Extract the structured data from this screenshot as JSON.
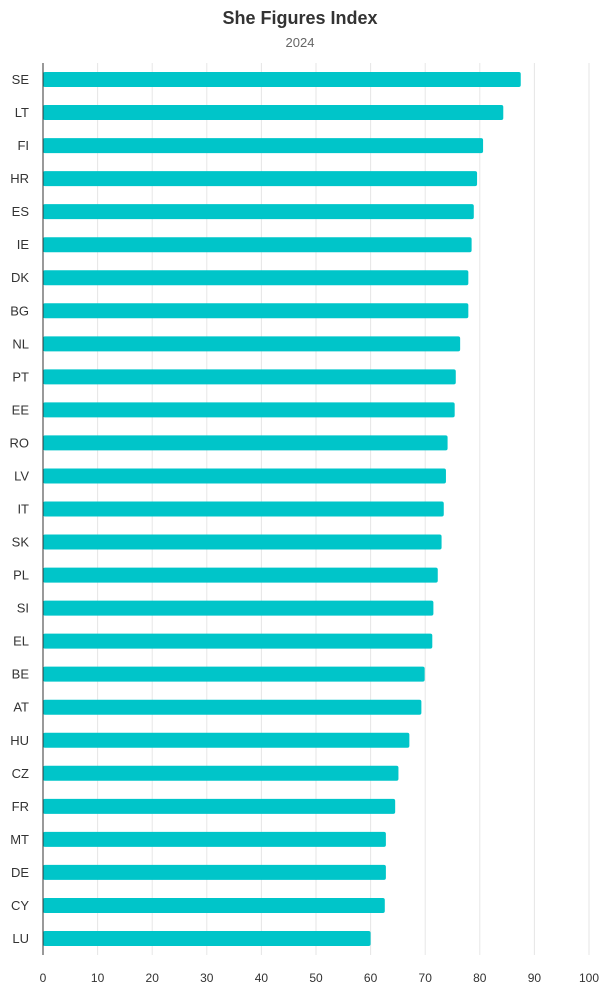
{
  "chart_data": {
    "type": "bar",
    "orientation": "horizontal",
    "title": "She Figures Index",
    "subtitle": "2024",
    "categories": [
      "SE",
      "LT",
      "FI",
      "HR",
      "ES",
      "IE",
      "DK",
      "BG",
      "NL",
      "PT",
      "EE",
      "RO",
      "LV",
      "IT",
      "SK",
      "PL",
      "SI",
      "EL",
      "BE",
      "AT",
      "HU",
      "CZ",
      "FR",
      "MT",
      "DE",
      "CY",
      "LU"
    ],
    "values": [
      87.5,
      84.3,
      80.6,
      79.5,
      78.9,
      78.5,
      77.9,
      77.9,
      76.4,
      75.6,
      75.4,
      74.1,
      73.8,
      73.4,
      73.0,
      72.3,
      71.5,
      71.3,
      69.9,
      69.3,
      67.1,
      65.1,
      64.5,
      62.8,
      62.8,
      62.6,
      60.0
    ],
    "xlim": [
      0,
      100
    ],
    "xticks": [
      "0",
      "10",
      "20",
      "30",
      "40",
      "50",
      "60",
      "70",
      "80",
      "90",
      "100"
    ],
    "bar_color": "#00c5c9",
    "grid": true,
    "legend": "none"
  }
}
